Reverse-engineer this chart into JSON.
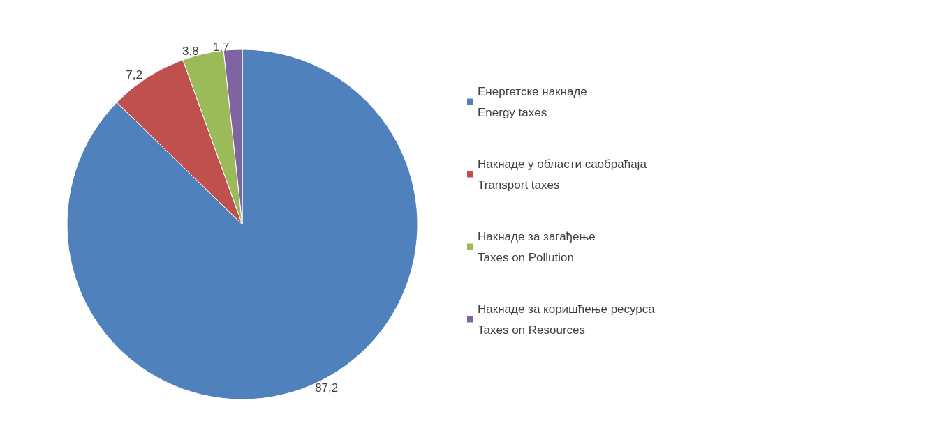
{
  "chart_data": {
    "type": "pie",
    "categories": [
      "Енергетске накнаде\nEnergy taxes",
      "Накнаде у области саобраћаја\nTransport taxes",
      "Накнаде за загађење\nTaxes on Pollution",
      "Накнаде за коришћење ресурса\nTaxes on Resources"
    ],
    "values": [
      87.2,
      7.2,
      3.8,
      1.7
    ],
    "colors": [
      "#4f81bd",
      "#c0504d",
      "#9bbb59",
      "#8064a2"
    ],
    "value_labels": [
      "87,2",
      "7,2",
      "3,8",
      "1,7"
    ],
    "legend": "right"
  }
}
